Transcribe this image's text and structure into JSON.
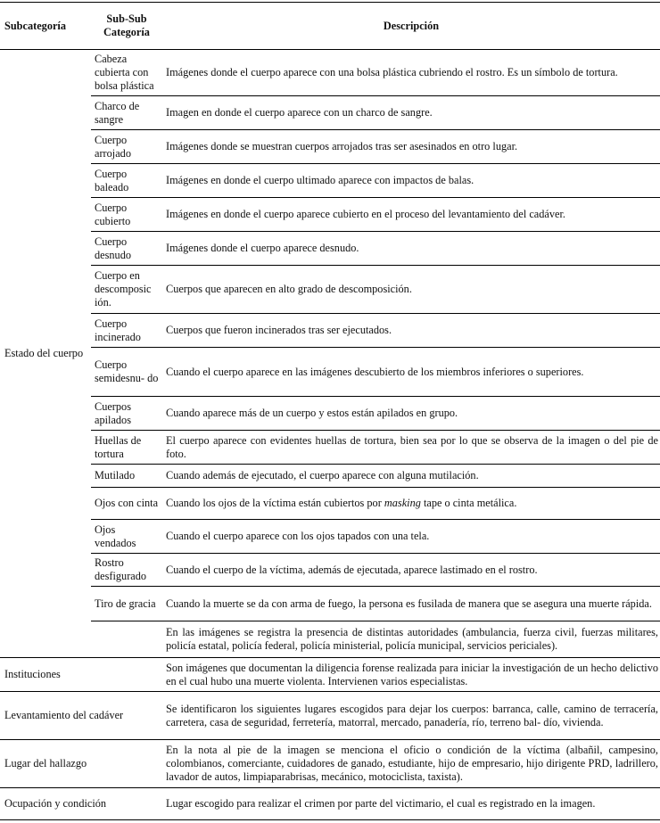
{
  "headers": [
    "Subcategoría",
    "Sub-Sub Categoría",
    "Descripción"
  ],
  "estado": {
    "label": "Estado del cuerpo",
    "rows": [
      {
        "sub": "Cabeza cubierta con bolsa plástica",
        "desc": "Imágenes donde el cuerpo aparece con una bolsa plástica cubriendo el rostro. Es un símbolo de tortura."
      },
      {
        "sub": "Charco de sangre",
        "desc": "Imagen en donde el cuerpo aparece con un charco de sangre."
      },
      {
        "sub": "Cuerpo arrojado",
        "desc": "Imágenes donde se muestran cuerpos arrojados tras ser asesinados en otro lugar."
      },
      {
        "sub": "Cuerpo baleado",
        "desc": "Imágenes en donde el cuerpo ultimado aparece con impactos de balas."
      },
      {
        "sub": "Cuerpo cubierto",
        "desc": "Imágenes en donde el cuerpo aparece cubierto en el proceso del levantamiento del cadáver."
      },
      {
        "sub": "Cuerpo desnudo",
        "desc": "Imágenes donde el cuerpo aparece desnudo."
      },
      {
        "sub": "Cuerpo en descomposic ión.",
        "desc": "Cuerpos que aparecen en alto grado de descomposición."
      },
      {
        "sub": "Cuerpo incinerado",
        "desc": "Cuerpos que fueron incinerados tras ser ejecutados."
      },
      {
        "sub": "Cuerpo semidesnu- do",
        "desc": "Cuando el cuerpo aparece en las imágenes descubierto de los miembros inferiores o superiores."
      },
      {
        "sub": "Cuerpos apilados",
        "desc": "Cuando aparece más de un cuerpo y estos están apilados en grupo."
      },
      {
        "sub": "Huellas de tortura",
        "desc": "El cuerpo aparece con evidentes huellas de tortura, bien sea por lo que se observa de la imagen o del pie de foto."
      },
      {
        "sub": "Mutilado",
        "desc": "Cuando además de ejecutado, el cuerpo aparece con alguna mutilación."
      },
      {
        "sub": "Ojos con cinta",
        "desc_pre": "Cuando los ojos de la víctima están cubiertos por ",
        "desc_em": "masking",
        "desc_post": " tape o cinta metálica."
      },
      {
        "sub": "Ojos vendados",
        "desc": "Cuando el cuerpo aparece con los ojos tapados con una tela."
      },
      {
        "sub": "Rostro desfigurado",
        "desc": "Cuando el cuerpo de la víctima, además de ejecutada, aparece lastimado en el rostro."
      },
      {
        "sub": "Tiro de gracia",
        "desc": "Cuando la muerte se da con arma de fuego, la persona es fusilada de manera que se asegura una muerte rápida."
      },
      {
        "sub": "",
        "desc": "En las imágenes se registra la presencia de distintas autoridades (ambulancia, fuerza civil, fuerzas militares, policía estatal, policía federal, policía ministerial, policía municipal, servicios periciales)."
      }
    ]
  },
  "others": [
    {
      "cat": "Instituciones",
      "desc": "Son imágenes que documentan la diligencia forense realizada para iniciar la investigación de un hecho delictivo en el cual hubo una muerte violenta. Intervienen varios especialistas."
    },
    {
      "cat": "Levantamiento del cadáver",
      "desc": "Se identificaron los siguientes lugares escogidos para dejar los cuerpos: barranca, calle, camino de terracería, carretera, casa de seguridad, ferretería, matorral, mercado, panadería, río, terreno bal- dío, vivienda."
    },
    {
      "cat": "Lugar del hallazgo",
      "desc": "En la nota al pie de la imagen se menciona el oficio o condición de la víctima (albañil, campesino, colombianos, comerciante, cuidadores de ganado, estudiante, hijo de empresario, hijo dirigente PRD, ladrillero, lavador de autos, limpiaparabrisas, mecánico, motociclista, taxista)."
    },
    {
      "cat": "Ocupación y condición",
      "desc": "Lugar escogido para realizar el crimen por parte del victimario, el cual es registrado en la imagen."
    }
  ]
}
